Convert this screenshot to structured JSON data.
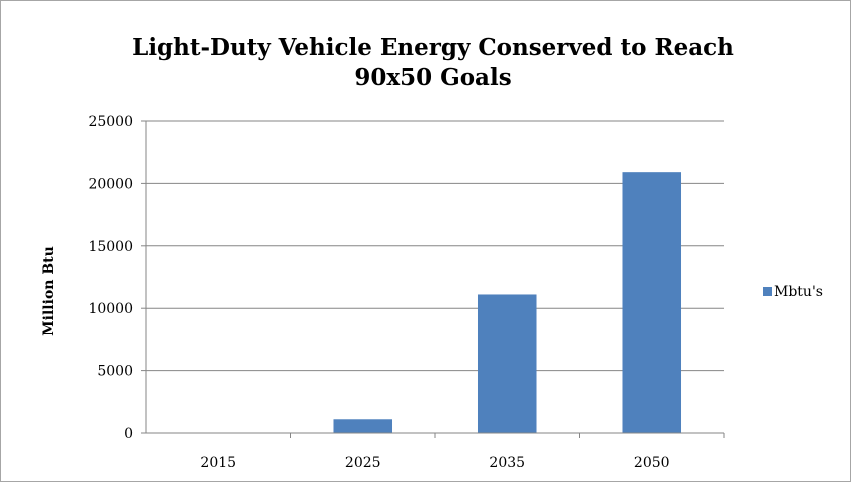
{
  "chart_data": {
    "type": "bar",
    "title_lines": [
      "Light-Duty Vehicle Energy  Conserved to Reach",
      "90x50 Goals"
    ],
    "categories": [
      "2015",
      "2025",
      "2035",
      "2050"
    ],
    "series": [
      {
        "name": "Mbtu's",
        "color": "#4f81bd",
        "values": [
          0,
          1100,
          11100,
          20900
        ]
      }
    ],
    "xlabel": "",
    "ylabel": "Million Btu",
    "ylim": [
      0,
      25000
    ],
    "yticks": [
      "0",
      "5000",
      "10000",
      "15000",
      "20000",
      "25000"
    ],
    "ytick_values": [
      0,
      5000,
      10000,
      15000,
      20000,
      25000
    ],
    "grid": true,
    "legend_position": "right"
  }
}
